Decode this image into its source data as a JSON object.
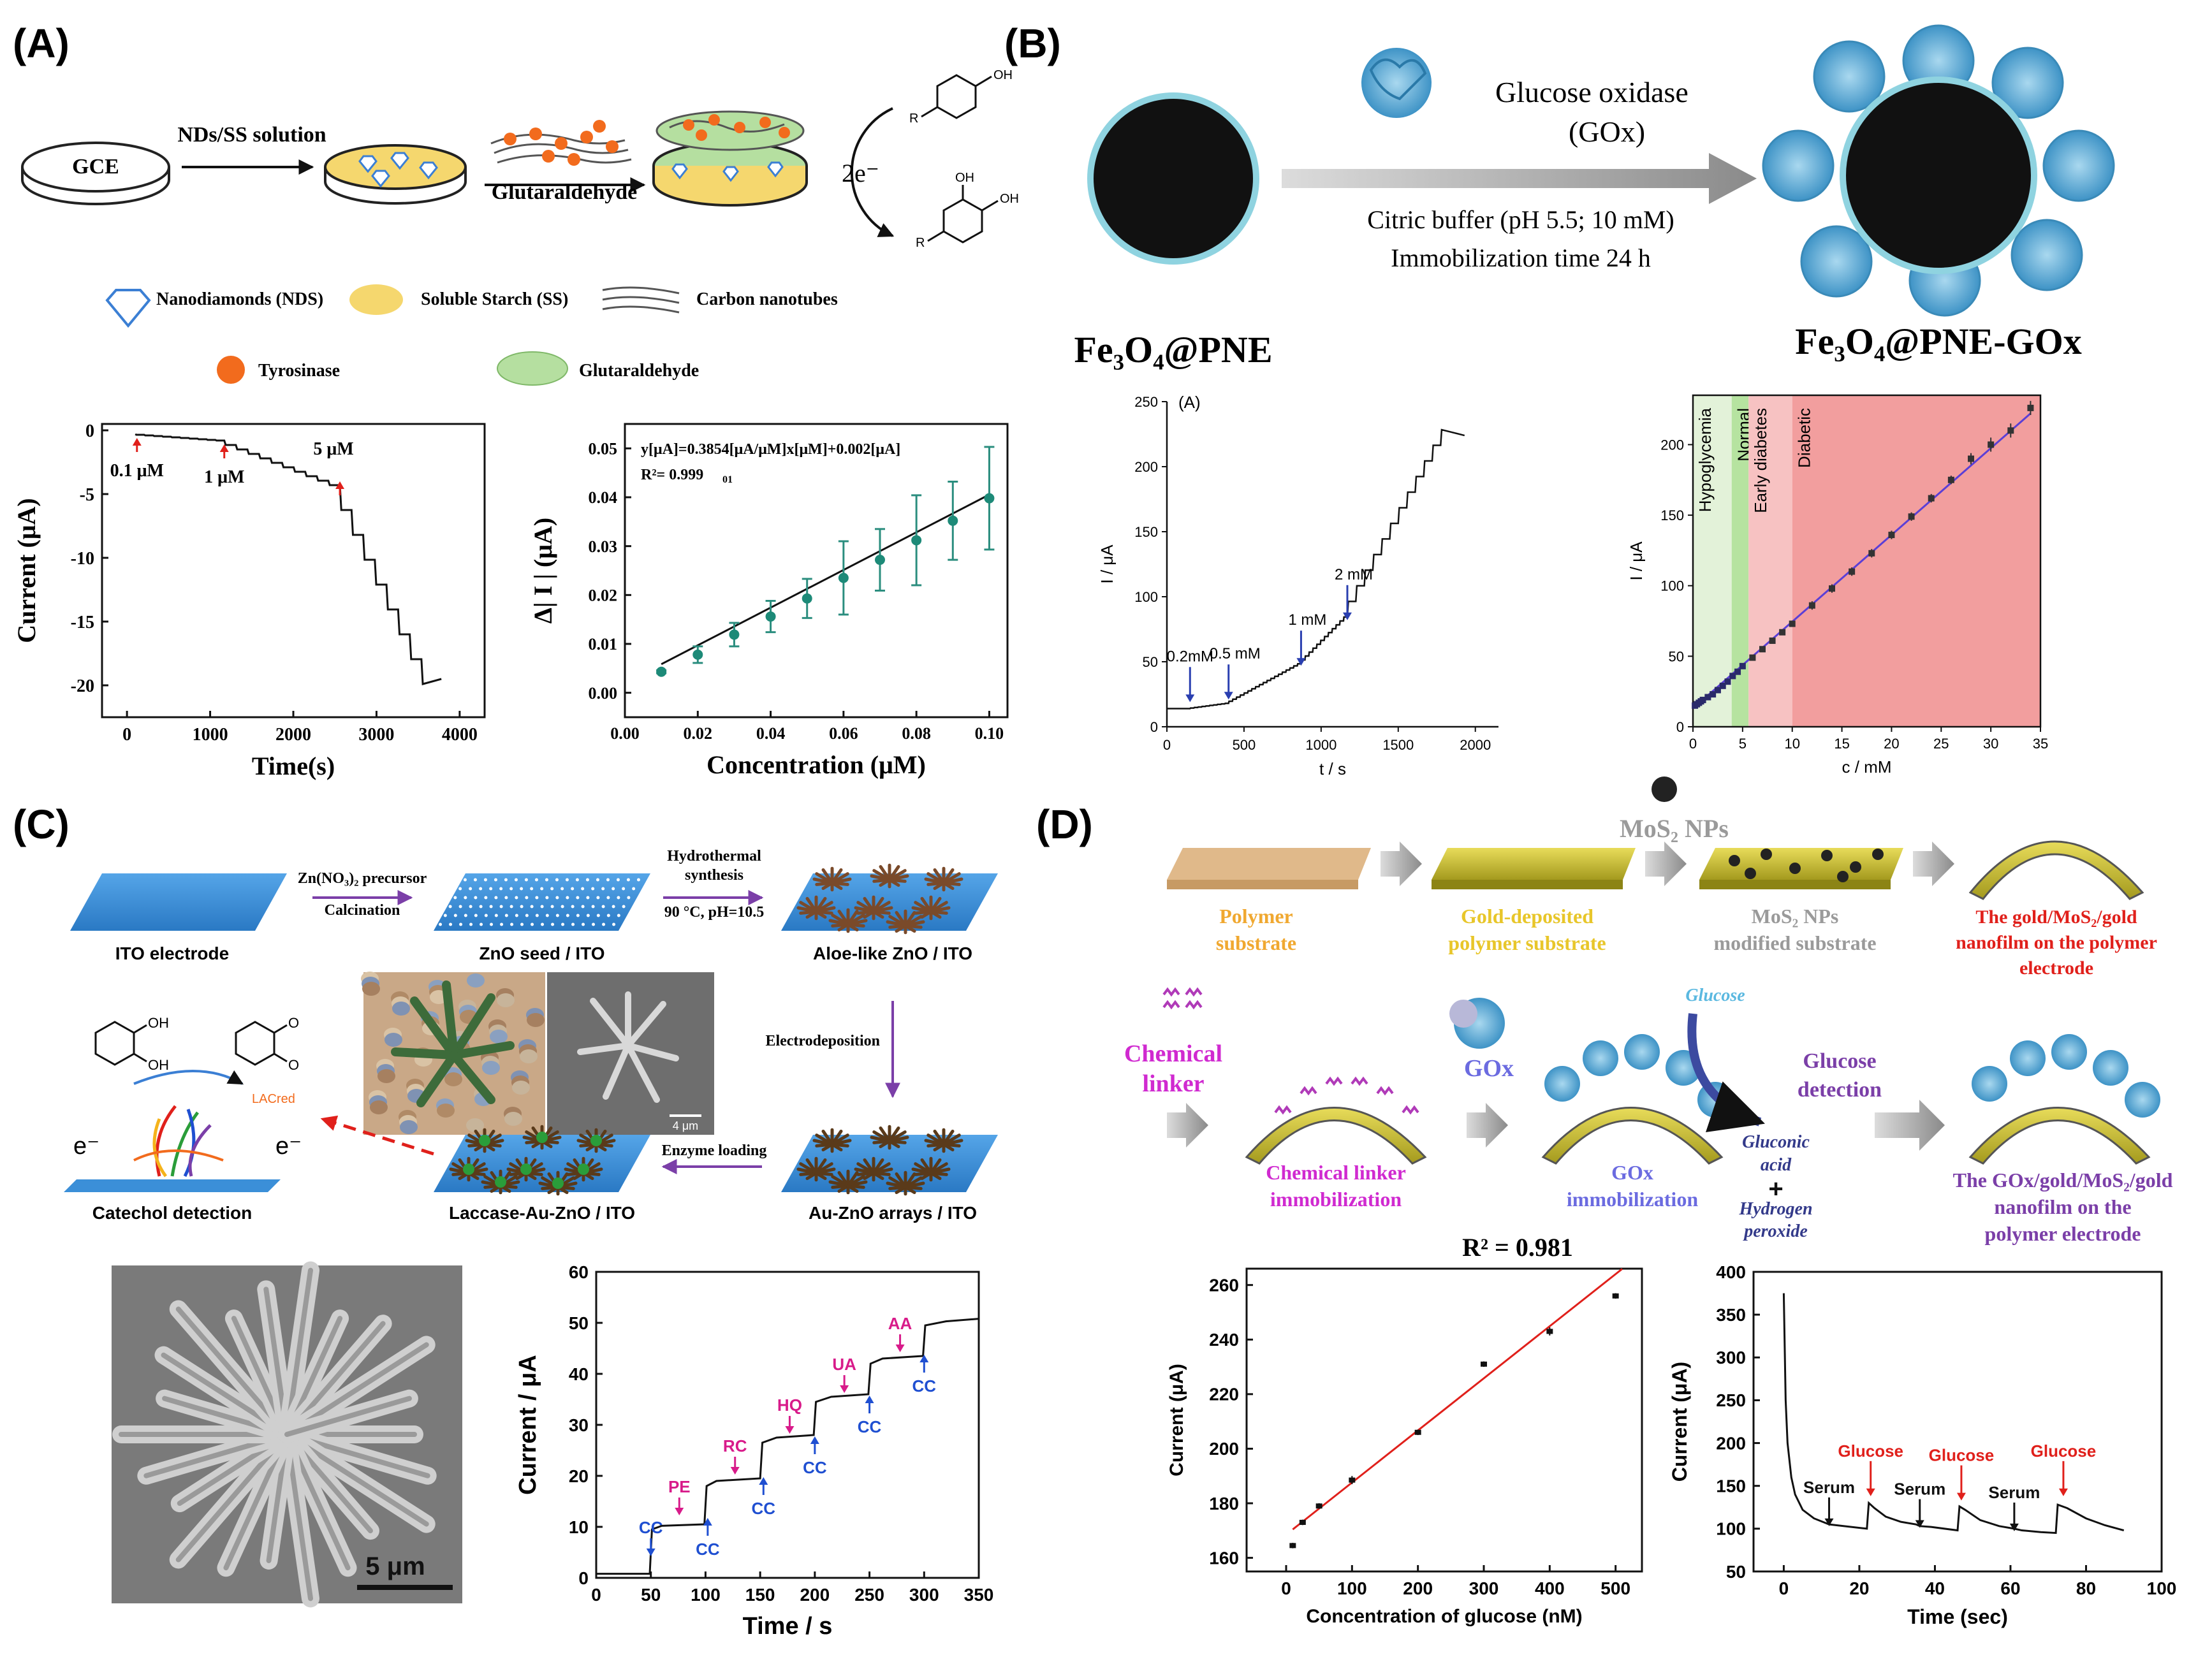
{
  "panels": {
    "A": {
      "label": "(A)",
      "gce": "GCE",
      "step1": "NDs/SS solution",
      "step2": "Glutaraldehyde",
      "electrons": "2e⁻",
      "legend": {
        "nds": "Nanodiamonds (NDS)",
        "ss": "Soluble Starch (SS)",
        "cnt": "Carbon nanotubes",
        "tyr": "Tyrosinase",
        "glut": "Glutaraldehyde"
      },
      "phenol_r": "R",
      "phenol_oh": "OH",
      "colors": {
        "ss": "#f5d76e",
        "tyr": "#f26b1d",
        "glut": "#b5dfa0",
        "nds": "#3b7fd4"
      }
    },
    "B": {
      "label": "(B)",
      "enzyme": "Glucose oxidase",
      "enzyme_abbr": "(GOx)",
      "buffer": "Citric buffer (pH 5.5; 10 mM)",
      "time": "Immobilization time 24 h",
      "np_left": "Fe₃O₄@PNE",
      "np_right": "Fe₃O₄@PNE-GOx"
    },
    "C": {
      "label": "(C)",
      "step1_top": "Zn(NO₃)₂ precursor",
      "step1_bottom": "Calcination",
      "step2_top": "Hydrothermal",
      "step2_mid": "synthesis",
      "step2_bottom": "90 °C, pH=10.5",
      "ito": "ITO electrode",
      "seed": "ZnO seed / ITO",
      "aloe": "Aloe-like ZnO / ITO",
      "electrodeposition": "Electrodeposition",
      "auzno": "Au-ZnO arrays / ITO",
      "enzyme_loading": "Enzyme loading",
      "laccase": "Laccase-Au-ZnO / ITO",
      "catechol": "Catechol detection",
      "lac": "LACred",
      "e1": "e⁻",
      "e2": "e⁻",
      "oh": "OH",
      "o": "O",
      "scale_small": "4 μm",
      "scale_big": "5 μm"
    },
    "D": {
      "label": "(D)",
      "mos2": "MoS₂ NPs",
      "s1": [
        "Polymer",
        "substrate"
      ],
      "s2": [
        "Gold-deposited",
        "polymer substrate"
      ],
      "s3": [
        "MoS₂ NPs",
        "modified substrate"
      ],
      "s4": [
        "The gold/MoS₂/gold",
        "nanofilm on the polymer",
        "electrode"
      ],
      "linker": [
        "Chemical",
        "linker"
      ],
      "linker_immob": [
        "Chemical linker",
        "immobilization"
      ],
      "gox": "GOx",
      "gox_immob": [
        "GOx",
        "immobilization"
      ],
      "glucose": "Glucose",
      "gluconic": [
        "Gluconic",
        "acid"
      ],
      "plus": "+",
      "h2o2": [
        "Hydrogen",
        "peroxide"
      ],
      "glucose_detection": [
        "Glucose",
        "detection"
      ],
      "final": [
        "The GOx/gold/MoS₂/gold",
        "nanofilm on the",
        "polymer electrode"
      ]
    }
  },
  "chart_data": [
    {
      "id": "A1",
      "type": "line",
      "xlabel": "Time(s)",
      "ylabel": "Current (μA)",
      "xlim": [
        -300,
        4300
      ],
      "ylim": [
        -22.5,
        0.5
      ],
      "xticks": [
        0,
        1000,
        2000,
        3000,
        4000
      ],
      "yticks": [
        0,
        -5,
        -10,
        -15,
        -20
      ],
      "annotations": [
        {
          "text": "0.1 μM",
          "x": 120,
          "y": -0.4
        },
        {
          "text": "1 μM",
          "x": 1170,
          "y": -0.9
        },
        {
          "text": "5 μM",
          "x": 2560,
          "y": -3.8
        }
      ],
      "steps": {
        "x0": 100,
        "y0": -0.3,
        "segments": [
          {
            "start": 100,
            "end": 1170,
            "n": 10,
            "dy": -0.05
          },
          {
            "start": 1170,
            "end": 2560,
            "n": 10,
            "dy": -0.35
          },
          {
            "start": 2560,
            "end": 3680,
            "n": 8,
            "dy": -1.95
          }
        ],
        "x_end": 3780,
        "y_end": -19.5
      }
    },
    {
      "id": "A2",
      "type": "scatter",
      "xlabel": "Concentration (μM)",
      "ylabel": "Δ| I | (μA)",
      "xlim": [
        0,
        0.105
      ],
      "ylim": [
        -0.005,
        0.055
      ],
      "xticks": [
        0.0,
        0.02,
        0.04,
        0.06,
        0.08,
        0.1
      ],
      "yticks": [
        0.0,
        0.01,
        0.02,
        0.03,
        0.04,
        0.05
      ],
      "equation": "y[μA]=0.3854[μA/μM]x[μM]+0.002[μA]",
      "r2": "R²= 0.999",
      "r2_sub": "01",
      "x": [
        0.01,
        0.02,
        0.03,
        0.04,
        0.05,
        0.06,
        0.07,
        0.08,
        0.09,
        0.1
      ],
      "y": [
        0.0043,
        0.0078,
        0.0119,
        0.0156,
        0.0193,
        0.0235,
        0.0272,
        0.0312,
        0.0352,
        0.0398
      ],
      "err": [
        0.0003,
        0.0017,
        0.0024,
        0.0032,
        0.004,
        0.0075,
        0.0063,
        0.0092,
        0.008,
        0.0105
      ],
      "fit": {
        "slope": 0.3854,
        "intercept": 0.002
      }
    },
    {
      "id": "B1",
      "type": "line",
      "title": "(A)",
      "xlabel": "t / s",
      "ylabel": "I / μA",
      "xlim": [
        0,
        2150
      ],
      "ylim": [
        0,
        250
      ],
      "xticks": [
        0,
        500,
        1000,
        1500,
        2000
      ],
      "yticks": [
        0,
        50,
        100,
        150,
        200,
        250
      ],
      "annotations": [
        {
          "text": "0.2mM",
          "x": 150,
          "y": 17
        },
        {
          "text": "0.5 mM",
          "x": 400,
          "y": 19
        },
        {
          "text": "1 mM",
          "x": 870,
          "y": 45
        },
        {
          "text": "2 mM",
          "x": 1170,
          "y": 80
        }
      ],
      "steps": {
        "x0": 0,
        "y0": 14,
        "segments": [
          {
            "start": 150,
            "end": 400,
            "n": 10,
            "dy": 0.4
          },
          {
            "start": 400,
            "end": 870,
            "n": 19,
            "dy": 1.6
          },
          {
            "start": 870,
            "end": 1170,
            "n": 12,
            "dy": 3.0
          },
          {
            "start": 1170,
            "end": 1830,
            "n": 12,
            "dy": 12.0
          }
        ],
        "x_end": 1930,
        "y_end": 224
      }
    },
    {
      "id": "B2",
      "type": "scatter",
      "xlabel": "c / mM",
      "ylabel": "I / μA",
      "xlim": [
        0,
        35
      ],
      "ylim": [
        0,
        235
      ],
      "xticks": [
        0,
        5,
        10,
        15,
        20,
        25,
        30,
        35
      ],
      "yticks": [
        0,
        50,
        100,
        150,
        200
      ],
      "regions": [
        {
          "label": "Hypoglycemia",
          "from": 0,
          "to": 3.9,
          "color": "#e3f2d9"
        },
        {
          "label": "Normal",
          "from": 3.9,
          "to": 5.6,
          "color": "#b6e3a0"
        },
        {
          "label": "Early diabetes",
          "from": 5.6,
          "to": 10,
          "color": "#f7c2c2"
        },
        {
          "label": "Diabetic",
          "from": 10,
          "to": 35,
          "color": "#f29e9e"
        }
      ],
      "x": [
        0.2,
        0.4,
        0.6,
        0.8,
        1.0,
        1.5,
        2.0,
        2.5,
        3.0,
        3.5,
        4.0,
        4.5,
        5.0,
        6.0,
        7.0,
        8.0,
        9.0,
        10.0,
        12.0,
        14.0,
        16.0,
        18.0,
        20.0,
        22.0,
        24.0,
        26.0,
        28.0,
        30.0,
        32.0,
        34.0
      ],
      "y": [
        15,
        16,
        17,
        18,
        19,
        21,
        23,
        26,
        29,
        32,
        36,
        39,
        43,
        49,
        55,
        61,
        67,
        73,
        86,
        98,
        110,
        123,
        136,
        149,
        162,
        175,
        190,
        200,
        210,
        226
      ],
      "err": [
        1,
        1,
        1,
        1,
        1,
        1,
        1,
        1,
        1,
        1,
        1,
        1,
        2,
        2,
        2,
        2,
        2,
        2,
        3,
        3,
        3,
        3,
        3,
        3,
        3,
        3,
        4,
        5,
        5,
        5
      ],
      "fit": {
        "slope": 6.15,
        "intercept": 13
      }
    },
    {
      "id": "C1",
      "type": "line",
      "xlabel": "Time / s",
      "ylabel": "Current / μA",
      "xlim": [
        0,
        350
      ],
      "ylim": [
        0,
        60
      ],
      "xticks": [
        0,
        50,
        100,
        150,
        200,
        250,
        300,
        350
      ],
      "yticks": [
        0,
        10,
        20,
        30,
        40,
        50,
        60
      ],
      "annotations": [
        {
          "text": "CC",
          "x": 50,
          "y": 4,
          "color": "#1f4fd1",
          "pos": "above"
        },
        {
          "text": "PE",
          "x": 76,
          "y": 12,
          "color": "#d81b8a",
          "pos": "above"
        },
        {
          "text": "CC",
          "x": 102,
          "y": 12,
          "color": "#1f4fd1",
          "pos": "below"
        },
        {
          "text": "RC",
          "x": 127,
          "y": 20,
          "color": "#d81b8a",
          "pos": "above"
        },
        {
          "text": "CC",
          "x": 153,
          "y": 20,
          "color": "#1f4fd1",
          "pos": "below"
        },
        {
          "text": "HQ",
          "x": 177,
          "y": 28,
          "color": "#d81b8a",
          "pos": "above"
        },
        {
          "text": "CC",
          "x": 200,
          "y": 28,
          "color": "#1f4fd1",
          "pos": "below"
        },
        {
          "text": "UA",
          "x": 227,
          "y": 36,
          "color": "#d81b8a",
          "pos": "above"
        },
        {
          "text": "CC",
          "x": 250,
          "y": 36,
          "color": "#1f4fd1",
          "pos": "below"
        },
        {
          "text": "AA",
          "x": 278,
          "y": 44,
          "color": "#d81b8a",
          "pos": "above"
        },
        {
          "text": "CC",
          "x": 300,
          "y": 44,
          "color": "#1f4fd1",
          "pos": "below"
        }
      ],
      "points": [
        [
          0,
          0.8
        ],
        [
          49,
          0.8
        ],
        [
          51,
          9.5
        ],
        [
          60,
          10.2
        ],
        [
          99,
          10.5
        ],
        [
          101,
          18
        ],
        [
          110,
          19
        ],
        [
          150,
          19.5
        ],
        [
          152,
          26.5
        ],
        [
          165,
          27.5
        ],
        [
          199,
          28
        ],
        [
          201,
          34.5
        ],
        [
          215,
          35.5
        ],
        [
          249,
          36
        ],
        [
          251,
          42
        ],
        [
          262,
          43
        ],
        [
          299,
          43.5
        ],
        [
          301,
          49.5
        ],
        [
          320,
          50.3
        ],
        [
          350,
          50.8
        ]
      ]
    },
    {
      "id": "D1",
      "type": "scatter",
      "xlabel": "Concentration of glucose (nM)",
      "ylabel": "Current (μA)",
      "title": "R² = 0.981",
      "xlim": [
        -60,
        540
      ],
      "ylim": [
        155,
        266
      ],
      "xticks": [
        0,
        100,
        200,
        300,
        400,
        500
      ],
      "yticks": [
        160,
        180,
        200,
        220,
        240,
        260
      ],
      "x": [
        10,
        25,
        50,
        100,
        200,
        300,
        400,
        500
      ],
      "y": [
        164.5,
        173,
        179,
        188.5,
        206,
        231,
        243,
        256
      ],
      "err": [
        1,
        1,
        1,
        1.5,
        1,
        1,
        1.5,
        1
      ],
      "fit": {
        "slope": 0.191,
        "intercept": 168.5
      }
    },
    {
      "id": "D2",
      "type": "line",
      "xlabel": "Time (sec)",
      "ylabel": "Current (μA)",
      "xlim": [
        -8,
        100
      ],
      "ylim": [
        50,
        400
      ],
      "xticks": [
        0,
        20,
        40,
        60,
        80,
        100
      ],
      "yticks": [
        50,
        100,
        150,
        200,
        250,
        300,
        350,
        400
      ],
      "annotations": [
        {
          "text": "Serum",
          "x": 12,
          "y": 100,
          "color": "#111111"
        },
        {
          "text": "Glucose",
          "x": 23,
          "y": 135,
          "color": "#e0201b"
        },
        {
          "text": "Serum",
          "x": 36,
          "y": 98,
          "color": "#111111"
        },
        {
          "text": "Glucose",
          "x": 47,
          "y": 130,
          "color": "#e0201b"
        },
        {
          "text": "Serum",
          "x": 61,
          "y": 94,
          "color": "#111111"
        },
        {
          "text": "Glucose",
          "x": 74,
          "y": 135,
          "color": "#e0201b"
        }
      ],
      "points": [
        [
          0,
          375
        ],
        [
          0.5,
          250
        ],
        [
          1,
          200
        ],
        [
          2,
          160
        ],
        [
          3,
          140
        ],
        [
          5,
          122
        ],
        [
          8,
          112
        ],
        [
          12,
          105
        ],
        [
          14,
          104
        ],
        [
          16,
          103
        ],
        [
          22,
          100
        ],
        [
          22.5,
          130
        ],
        [
          24,
          124
        ],
        [
          27,
          114
        ],
        [
          31,
          108
        ],
        [
          35,
          105
        ],
        [
          36,
          103
        ],
        [
          39,
          102
        ],
        [
          46,
          98
        ],
        [
          46.5,
          126
        ],
        [
          48,
          122
        ],
        [
          52,
          110
        ],
        [
          57,
          103
        ],
        [
          61,
          100
        ],
        [
          63,
          98
        ],
        [
          68,
          96
        ],
        [
          72,
          95
        ],
        [
          72.5,
          128
        ],
        [
          75,
          124
        ],
        [
          80,
          112
        ],
        [
          85,
          104
        ],
        [
          90,
          98
        ]
      ]
    }
  ]
}
